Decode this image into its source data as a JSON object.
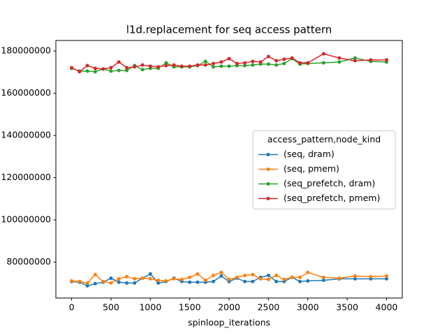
{
  "chart_data": {
    "type": "line",
    "title": "l1d.replacement for seq access pattern",
    "xlabel": "spinloop_iterations",
    "legend_title": "access_pattern,node_kind",
    "legend_loc": "center right",
    "x": [
      0,
      100,
      200,
      300,
      400,
      500,
      600,
      700,
      800,
      900,
      1000,
      1100,
      1200,
      1300,
      1400,
      1500,
      1600,
      1700,
      1800,
      1900,
      2000,
      2100,
      2200,
      2300,
      2400,
      2500,
      2600,
      2700,
      2800,
      2900,
      3000,
      3200,
      3400,
      3600,
      3800,
      4000
    ],
    "xlim": [
      -200,
      4200
    ],
    "xticks": [
      0,
      500,
      1000,
      1500,
      2000,
      2500,
      3000,
      3500,
      4000
    ],
    "ylim": [
      63000000,
      185000000
    ],
    "yticks": [
      80000000,
      100000000,
      120000000,
      140000000,
      160000000,
      180000000
    ],
    "series": [
      {
        "name": "(seq, dram)",
        "color": "#1f77b4",
        "values": [
          70800000,
          70500000,
          68800000,
          69800000,
          70500000,
          72400000,
          70500000,
          70100000,
          70100000,
          72400000,
          74400000,
          70100000,
          70800000,
          72400000,
          70800000,
          70500000,
          70500000,
          70500000,
          70800000,
          73400000,
          70800000,
          72400000,
          70800000,
          70800000,
          72800000,
          73700000,
          70800000,
          70800000,
          72800000,
          70800000,
          71100000,
          71400000,
          72100000,
          72100000,
          72100000,
          72100000
        ]
      },
      {
        "name": "(seq, pmem)",
        "color": "#ff7f0e",
        "values": [
          71100000,
          70800000,
          70100000,
          74100000,
          70800000,
          70100000,
          72100000,
          73100000,
          72100000,
          72400000,
          72100000,
          71400000,
          71100000,
          72100000,
          71800000,
          72800000,
          74400000,
          71400000,
          73700000,
          75100000,
          71800000,
          72800000,
          73700000,
          74100000,
          72100000,
          71800000,
          73700000,
          71800000,
          72800000,
          72800000,
          75100000,
          72800000,
          72400000,
          73400000,
          73100000,
          73400000
        ]
      },
      {
        "name": "(seq_prefetch, dram)",
        "color": "#2ca02c",
        "values": [
          171800000,
          170500000,
          170500000,
          170200000,
          171500000,
          170500000,
          170800000,
          170800000,
          173100000,
          171200000,
          171800000,
          171800000,
          174400000,
          172500000,
          172500000,
          172500000,
          173100000,
          175100000,
          172500000,
          172800000,
          172800000,
          173100000,
          173100000,
          173400000,
          173800000,
          173800000,
          173400000,
          174100000,
          176400000,
          173800000,
          174100000,
          174400000,
          174800000,
          176700000,
          175100000,
          174800000
        ]
      },
      {
        "name": "(seq_prefetch, pmem)",
        "color": "#d62728",
        "values": [
          172100000,
          170200000,
          173100000,
          171800000,
          171500000,
          172100000,
          174800000,
          172100000,
          172500000,
          173400000,
          172800000,
          172500000,
          173100000,
          173400000,
          172800000,
          172800000,
          173400000,
          173400000,
          174100000,
          174800000,
          176400000,
          174100000,
          174400000,
          175100000,
          174800000,
          177400000,
          175400000,
          176100000,
          176700000,
          174400000,
          174400000,
          178700000,
          176700000,
          175400000,
          175800000,
          175800000
        ]
      }
    ]
  }
}
